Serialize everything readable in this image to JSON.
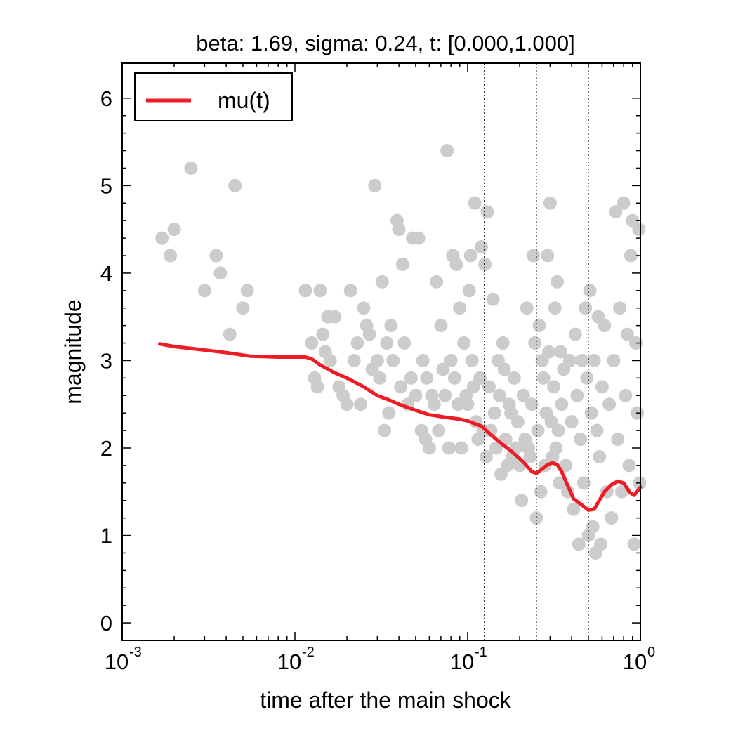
{
  "chart_data": {
    "type": "scatter",
    "title": "beta: 1.69, sigma: 0.24, t: [0.000,1.000]",
    "xlabel": "time after the main shock",
    "ylabel": "magnitude",
    "xscale": "log",
    "xlim": [
      0.001,
      1
    ],
    "ylim": [
      -0.2,
      6.4
    ],
    "x_ticks": [
      {
        "value": 0.001,
        "base": "10",
        "exp": "-3"
      },
      {
        "value": 0.01,
        "base": "10",
        "exp": "-2"
      },
      {
        "value": 0.1,
        "base": "10",
        "exp": "-1"
      },
      {
        "value": 1,
        "base": "10",
        "exp": "0"
      }
    ],
    "y_ticks": [
      0,
      1,
      2,
      3,
      4,
      5,
      6
    ],
    "grid": false,
    "legend": {
      "position": "top-left",
      "entries": [
        {
          "label": "mu(t)",
          "color": "#ee1c25"
        }
      ]
    },
    "vlines": [
      0.125,
      0.25,
      0.5
    ],
    "colors": {
      "scatter": "#cccccc",
      "line": "#ee1c25",
      "vlines": "#000000"
    },
    "scatter": {
      "name": "",
      "points": [
        [
          0.0017,
          4.4
        ],
        [
          0.0019,
          4.2
        ],
        [
          0.002,
          4.5
        ],
        [
          0.0025,
          5.2
        ],
        [
          0.003,
          3.8
        ],
        [
          0.0035,
          4.2
        ],
        [
          0.0037,
          4.0
        ],
        [
          0.0042,
          3.3
        ],
        [
          0.0045,
          5.0
        ],
        [
          0.005,
          3.6
        ],
        [
          0.0053,
          3.8
        ],
        [
          0.0115,
          3.8
        ],
        [
          0.0125,
          3.2
        ],
        [
          0.013,
          2.8
        ],
        [
          0.0135,
          2.7
        ],
        [
          0.014,
          3.8
        ],
        [
          0.0145,
          3.3
        ],
        [
          0.015,
          3.1
        ],
        [
          0.0155,
          3.5
        ],
        [
          0.016,
          3.0
        ],
        [
          0.017,
          3.5
        ],
        [
          0.018,
          2.7
        ],
        [
          0.019,
          2.6
        ],
        [
          0.02,
          2.5
        ],
        [
          0.021,
          3.8
        ],
        [
          0.022,
          3.0
        ],
        [
          0.023,
          3.2
        ],
        [
          0.024,
          2.5
        ],
        [
          0.025,
          3.6
        ],
        [
          0.026,
          3.4
        ],
        [
          0.027,
          3.3
        ],
        [
          0.028,
          2.9
        ],
        [
          0.029,
          5.0
        ],
        [
          0.03,
          3.0
        ],
        [
          0.031,
          2.8
        ],
        [
          0.032,
          3.9
        ],
        [
          0.033,
          2.2
        ],
        [
          0.034,
          3.2
        ],
        [
          0.035,
          2.4
        ],
        [
          0.036,
          3.4
        ],
        [
          0.037,
          3.0
        ],
        [
          0.039,
          4.6
        ],
        [
          0.04,
          4.5
        ],
        [
          0.041,
          2.7
        ],
        [
          0.042,
          4.1
        ],
        [
          0.043,
          3.2
        ],
        [
          0.045,
          2.5
        ],
        [
          0.047,
          2.8
        ],
        [
          0.048,
          4.4
        ],
        [
          0.05,
          2.6
        ],
        [
          0.052,
          4.4
        ],
        [
          0.054,
          2.2
        ],
        [
          0.055,
          3.0
        ],
        [
          0.057,
          2.1
        ],
        [
          0.058,
          2.8
        ],
        [
          0.06,
          2.0
        ],
        [
          0.062,
          2.6
        ],
        [
          0.064,
          2.5
        ],
        [
          0.066,
          3.9
        ],
        [
          0.068,
          2.2
        ],
        [
          0.07,
          3.4
        ],
        [
          0.072,
          2.9
        ],
        [
          0.074,
          2.6
        ],
        [
          0.076,
          5.4
        ],
        [
          0.078,
          2.0
        ],
        [
          0.08,
          3.0
        ],
        [
          0.082,
          4.2
        ],
        [
          0.084,
          2.8
        ],
        [
          0.086,
          4.1
        ],
        [
          0.088,
          2.5
        ],
        [
          0.09,
          3.6
        ],
        [
          0.092,
          2.0
        ],
        [
          0.095,
          3.2
        ],
        [
          0.098,
          2.6
        ],
        [
          0.1,
          2.5
        ],
        [
          0.102,
          3.8
        ],
        [
          0.104,
          4.2
        ],
        [
          0.106,
          3.0
        ],
        [
          0.108,
          2.7
        ],
        [
          0.11,
          4.8
        ],
        [
          0.112,
          2.3
        ],
        [
          0.115,
          2.1
        ],
        [
          0.118,
          2.8
        ],
        [
          0.12,
          4.3
        ],
        [
          0.123,
          2.2
        ],
        [
          0.126,
          4.1
        ],
        [
          0.128,
          1.9
        ],
        [
          0.13,
          4.7
        ],
        [
          0.133,
          2.7
        ],
        [
          0.136,
          2.2
        ],
        [
          0.14,
          3.7
        ],
        [
          0.143,
          2.4
        ],
        [
          0.146,
          2.0
        ],
        [
          0.15,
          3.0
        ],
        [
          0.153,
          2.6
        ],
        [
          0.156,
          1.7
        ],
        [
          0.16,
          3.2
        ],
        [
          0.163,
          2.9
        ],
        [
          0.166,
          2.1
        ],
        [
          0.17,
          1.8
        ],
        [
          0.174,
          2.5
        ],
        [
          0.178,
          2.4
        ],
        [
          0.182,
          1.9
        ],
        [
          0.186,
          2.8
        ],
        [
          0.19,
          2.0
        ],
        [
          0.195,
          2.3
        ],
        [
          0.2,
          1.8
        ],
        [
          0.205,
          1.4
        ],
        [
          0.21,
          2.6
        ],
        [
          0.215,
          2.1
        ],
        [
          0.22,
          3.6
        ],
        [
          0.225,
          2.0
        ],
        [
          0.23,
          1.9
        ],
        [
          0.235,
          2.5
        ],
        [
          0.24,
          4.2
        ],
        [
          0.245,
          3.2
        ],
        [
          0.25,
          1.2
        ],
        [
          0.255,
          2.2
        ],
        [
          0.26,
          3.4
        ],
        [
          0.265,
          1.5
        ],
        [
          0.27,
          3.0
        ],
        [
          0.275,
          2.8
        ],
        [
          0.28,
          1.8
        ],
        [
          0.285,
          2.4
        ],
        [
          0.29,
          4.2
        ],
        [
          0.295,
          3.1
        ],
        [
          0.3,
          4.8
        ],
        [
          0.305,
          2.3
        ],
        [
          0.31,
          1.9
        ],
        [
          0.315,
          2.7
        ],
        [
          0.32,
          3.6
        ],
        [
          0.325,
          2.0
        ],
        [
          0.33,
          3.9
        ],
        [
          0.335,
          2.2
        ],
        [
          0.34,
          1.6
        ],
        [
          0.345,
          3.1
        ],
        [
          0.35,
          2.5
        ],
        [
          0.36,
          2.9
        ],
        [
          0.37,
          1.8
        ],
        [
          0.38,
          1.5
        ],
        [
          0.39,
          3.0
        ],
        [
          0.4,
          2.3
        ],
        [
          0.41,
          1.3
        ],
        [
          0.42,
          3.3
        ],
        [
          0.43,
          2.6
        ],
        [
          0.44,
          0.9
        ],
        [
          0.45,
          2.1
        ],
        [
          0.46,
          3.0
        ],
        [
          0.47,
          1.6
        ],
        [
          0.48,
          3.6
        ],
        [
          0.49,
          2.8
        ],
        [
          0.5,
          1.0
        ],
        [
          0.51,
          3.8
        ],
        [
          0.52,
          2.4
        ],
        [
          0.53,
          1.1
        ],
        [
          0.54,
          3.0
        ],
        [
          0.55,
          0.8
        ],
        [
          0.56,
          2.2
        ],
        [
          0.57,
          3.5
        ],
        [
          0.58,
          1.9
        ],
        [
          0.59,
          0.9
        ],
        [
          0.6,
          2.7
        ],
        [
          0.62,
          3.4
        ],
        [
          0.64,
          1.5
        ],
        [
          0.66,
          2.5
        ],
        [
          0.68,
          1.2
        ],
        [
          0.7,
          3.0
        ],
        [
          0.72,
          4.7
        ],
        [
          0.74,
          2.1
        ],
        [
          0.76,
          3.6
        ],
        [
          0.78,
          1.5
        ],
        [
          0.8,
          4.8
        ],
        [
          0.82,
          2.6
        ],
        [
          0.84,
          3.3
        ],
        [
          0.86,
          1.8
        ],
        [
          0.88,
          4.2
        ],
        [
          0.9,
          4.6
        ],
        [
          0.92,
          0.9
        ],
        [
          0.94,
          3.2
        ],
        [
          0.96,
          2.4
        ],
        [
          0.98,
          4.5
        ],
        [
          0.99,
          1.6
        ]
      ]
    },
    "series": [
      {
        "name": "mu(t)",
        "points": [
          [
            0.00165,
            3.19
          ],
          [
            0.002,
            3.16
          ],
          [
            0.003,
            3.12
          ],
          [
            0.004,
            3.09
          ],
          [
            0.0055,
            3.05
          ],
          [
            0.008,
            3.04
          ],
          [
            0.0115,
            3.04
          ],
          [
            0.0125,
            3.02
          ],
          [
            0.014,
            2.95
          ],
          [
            0.017,
            2.86
          ],
          [
            0.02,
            2.8
          ],
          [
            0.025,
            2.7
          ],
          [
            0.03,
            2.6
          ],
          [
            0.035,
            2.55
          ],
          [
            0.04,
            2.5
          ],
          [
            0.05,
            2.43
          ],
          [
            0.06,
            2.38
          ],
          [
            0.075,
            2.35
          ],
          [
            0.09,
            2.33
          ],
          [
            0.1,
            2.31
          ],
          [
            0.12,
            2.25
          ],
          [
            0.15,
            2.08
          ],
          [
            0.18,
            1.96
          ],
          [
            0.21,
            1.84
          ],
          [
            0.235,
            1.73
          ],
          [
            0.25,
            1.71
          ],
          [
            0.27,
            1.76
          ],
          [
            0.29,
            1.81
          ],
          [
            0.31,
            1.83
          ],
          [
            0.33,
            1.81
          ],
          [
            0.35,
            1.73
          ],
          [
            0.38,
            1.57
          ],
          [
            0.41,
            1.42
          ],
          [
            0.45,
            1.36
          ],
          [
            0.5,
            1.29
          ],
          [
            0.54,
            1.3
          ],
          [
            0.57,
            1.38
          ],
          [
            0.62,
            1.5
          ],
          [
            0.68,
            1.58
          ],
          [
            0.74,
            1.62
          ],
          [
            0.8,
            1.6
          ],
          [
            0.87,
            1.49
          ],
          [
            0.92,
            1.46
          ],
          [
            1.0,
            1.55
          ]
        ]
      }
    ]
  }
}
